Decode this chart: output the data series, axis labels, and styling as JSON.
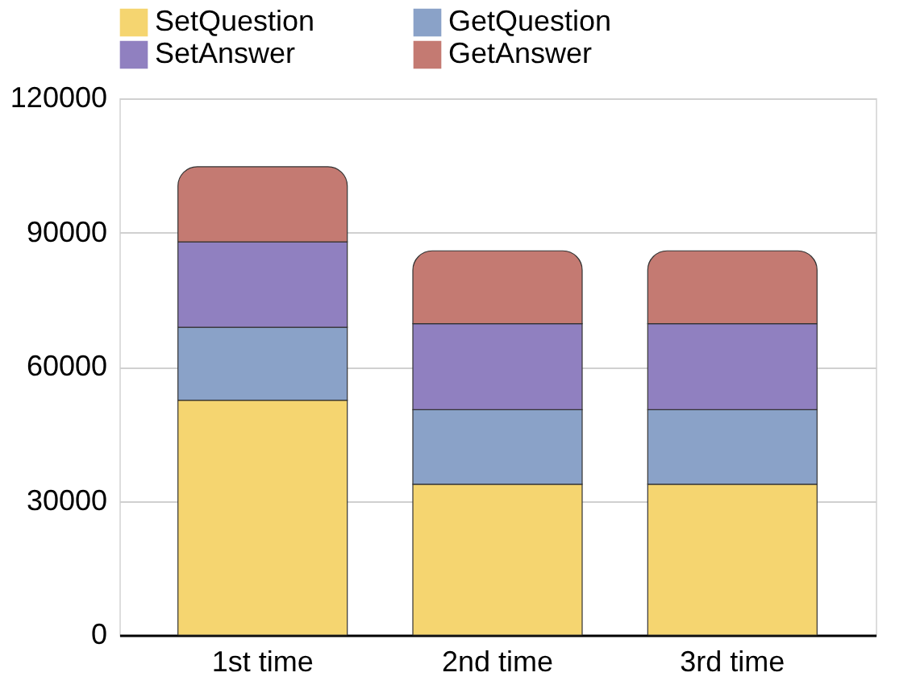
{
  "chart_data": {
    "type": "bar",
    "stacked": true,
    "categories": [
      "1st time",
      "2nd time",
      "3rd time"
    ],
    "series": [
      {
        "name": "SetQuestion",
        "color": "#f5d570",
        "values": [
          52500,
          33700,
          33700
        ]
      },
      {
        "name": "GetQuestion",
        "color": "#8aa2c8",
        "values": [
          16300,
          16700,
          16700
        ]
      },
      {
        "name": "SetAnswer",
        "color": "#9080c0",
        "values": [
          19100,
          19200,
          19200
        ]
      },
      {
        "name": "GetAnswer",
        "color": "#c47a72",
        "values": [
          16800,
          16300,
          16300
        ]
      }
    ],
    "ylim": [
      0,
      120000
    ],
    "yticks": [
      0,
      30000,
      60000,
      90000,
      120000
    ],
    "grid": "y",
    "legend": "top"
  }
}
